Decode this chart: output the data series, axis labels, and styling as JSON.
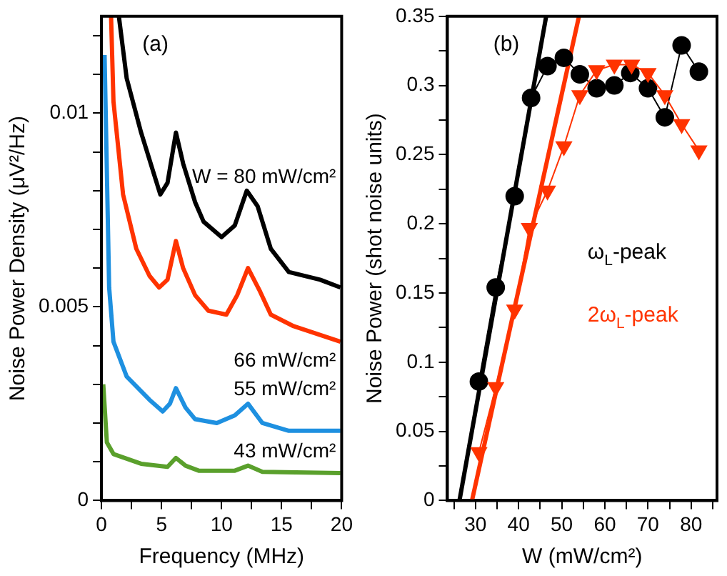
{
  "chart_data": [
    {
      "type": "line",
      "xlabel": "Frequency (MHz)",
      "ylabel": "Noise Power Density (μV²/Hz)",
      "annotations": [
        "(a)"
      ],
      "xlim": [
        0,
        20
      ],
      "ylim": [
        0,
        0.0125
      ],
      "xticks": [
        0,
        {
          "value": 2.5,
          "label": null
        },
        5,
        {
          "value": 7.5,
          "label": null
        },
        10,
        {
          "value": 12.5,
          "label": null
        },
        15,
        {
          "value": 17.5,
          "label": null
        },
        20
      ],
      "yticks": [
        0,
        {
          "value": 0.001,
          "label": null
        },
        {
          "value": 0.002,
          "label": null
        },
        {
          "value": 0.003,
          "label": null
        },
        {
          "value": 0.004,
          "label": null
        },
        0.005,
        {
          "value": 0.006,
          "label": null
        },
        {
          "value": 0.007,
          "label": null
        },
        {
          "value": 0.008,
          "label": null
        },
        {
          "value": 0.009,
          "label": null
        },
        0.01,
        {
          "value": 0.011,
          "label": null
        },
        {
          "value": 0.012,
          "label": null
        }
      ],
      "marker": "none",
      "series": [
        {
          "name": "W = 80 mW/cm²",
          "color": "#000000",
          "x": [
            1.45,
            2.1,
            3.3,
            4.4,
            4.9,
            5.5,
            6.2,
            6.8,
            7.8,
            8.5,
            10,
            11.1,
            12.1,
            13,
            14.1,
            15.6,
            18.2,
            19.9
          ],
          "values": [
            0.0125,
            0.0109,
            0.0095,
            0.0084,
            0.0079,
            0.0082,
            0.0095,
            0.0087,
            0.0077,
            0.0072,
            0.0068,
            0.0071,
            0.008,
            0.0076,
            0.0065,
            0.0059,
            0.0057,
            0.0055
          ]
        },
        {
          "name": "66 mW/cm²",
          "color": "#ff3300",
          "x": [
            0.8,
            1.0,
            1.8,
            2.9,
            4.0,
            4.8,
            5.5,
            6.2,
            6.8,
            7.8,
            8.9,
            10.4,
            11.3,
            12.2,
            13.2,
            14.1,
            16,
            19.9
          ],
          "values": [
            0.0125,
            0.0103,
            0.0079,
            0.0065,
            0.0058,
            0.0055,
            0.0057,
            0.0067,
            0.006,
            0.0053,
            0.0049,
            0.0048,
            0.0053,
            0.006,
            0.0054,
            0.0048,
            0.0045,
            0.0041
          ]
        },
        {
          "name": "55 mW/cm²",
          "color": "#1e90e0",
          "x": [
            0.26,
            0.64,
            1.0,
            2.1,
            4.0,
            5.1,
            5.7,
            6.2,
            7.0,
            7.8,
            9.6,
            11.1,
            12.2,
            13.4,
            15.6,
            19.9
          ],
          "values": [
            0.0115,
            0.0055,
            0.0041,
            0.0032,
            0.0026,
            0.0023,
            0.0025,
            0.0029,
            0.0024,
            0.0021,
            0.002,
            0.0022,
            0.0025,
            0.002,
            0.0018,
            0.0018
          ]
        },
        {
          "name": "43 mW/cm²",
          "color": "#5aa02c",
          "x": [
            0.15,
            0.45,
            1.0,
            3.3,
            5.5,
            6.2,
            7.0,
            8.1,
            11.1,
            12.2,
            13.4,
            19.9
          ],
          "values": [
            0.003,
            0.0015,
            0.0012,
            0.00095,
            0.00087,
            0.0011,
            0.0009,
            0.00077,
            0.00077,
            0.0009,
            0.00074,
            0.00071
          ]
        }
      ]
    },
    {
      "type": "line",
      "xlabel": "W (mW/cm²)",
      "ylabel": "Noise Power (shot noise units)",
      "annotations": [
        "(b)"
      ],
      "xlim": [
        23.5,
        86
      ],
      "ylim": [
        0,
        0.35
      ],
      "xticks": [
        {
          "value": 25,
          "label": null
        },
        30,
        {
          "value": 35,
          "label": null
        },
        40,
        {
          "value": 45,
          "label": null
        },
        50,
        {
          "value": 55,
          "label": null
        },
        60,
        {
          "value": 65,
          "label": null
        },
        70,
        {
          "value": 75,
          "label": null
        },
        80,
        {
          "value": 85,
          "label": null
        }
      ],
      "yticks": [
        0,
        {
          "value": 0.025,
          "label": null
        },
        0.05,
        {
          "value": 0.075,
          "label": null
        },
        0.1,
        {
          "value": 0.125,
          "label": null
        },
        0.15,
        {
          "value": 0.175,
          "label": null
        },
        0.2,
        {
          "value": 0.225,
          "label": null
        },
        0.25,
        {
          "value": 0.275,
          "label": null
        },
        0.3,
        {
          "value": 0.325,
          "label": null
        },
        0.35
      ],
      "series": [
        {
          "type": "line",
          "marker": "none",
          "color": "#000000",
          "x": [
            26.3,
            46.4
          ],
          "values": [
            0,
            0.35
          ]
        },
        {
          "type": "line",
          "marker": "none",
          "color": "#ff3300",
          "x": [
            29.2,
            54.0
          ],
          "values": [
            0,
            0.35
          ]
        },
        {
          "name": "ω$_{L}$-peak",
          "marker": "circle",
          "color": "#000000",
          "x": [
            30.8,
            34.7,
            39.1,
            42.9,
            46.7,
            50.5,
            54.2,
            58.1,
            62.2,
            65.9,
            70.0,
            73.9,
            77.8,
            81.8
          ],
          "values": [
            0.086,
            0.154,
            0.22,
            0.291,
            0.314,
            0.32,
            0.308,
            0.298,
            0.3,
            0.309,
            0.298,
            0.277,
            0.329,
            0.31
          ]
        },
        {
          "name": "2ω$_{L}$-peak",
          "marker": "triangle",
          "color": "#ff3300",
          "x": [
            30.8,
            34.7,
            39.1,
            42.5,
            46.7,
            50.5,
            54.2,
            58.1,
            62.2,
            66.2,
            70.0,
            73.9,
            77.8,
            81.8
          ],
          "values": [
            0.035,
            0.082,
            0.138,
            0.197,
            0.224,
            0.256,
            0.293,
            0.311,
            0.315,
            0.315,
            0.309,
            0.293,
            0.272,
            0.253
          ]
        }
      ]
    }
  ]
}
